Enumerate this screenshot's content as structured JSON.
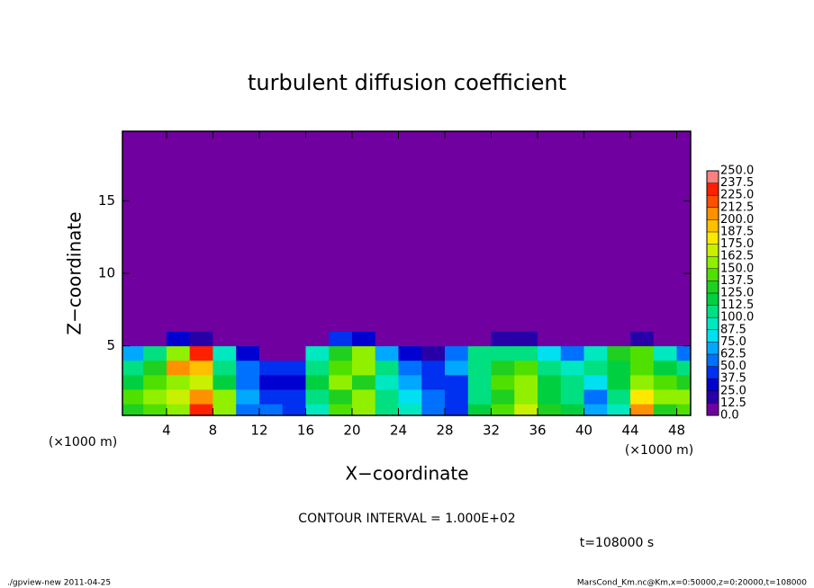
{
  "chart_data": {
    "type": "contour",
    "title": "turbulent diffusion coefficient",
    "xlabel": "X−coordinate",
    "ylabel": "Z−coordinate",
    "x_unit_label": "(×1000 m)",
    "y_unit_label": "(×1000 m)",
    "contour_interval": "CONTOUR INTERVAL = 1.000E+02",
    "time_label": "t=108000 s",
    "footer_left": "./gpview-new   2011-04-25",
    "footer_right": "MarsCond_Km.nc@Km,x=0:50000,z=0:20000,t=108000",
    "xlim": [
      0.2,
      49.2
    ],
    "ylim": [
      0.2,
      19.8
    ],
    "xticks": [
      4,
      8,
      12,
      16,
      20,
      24,
      28,
      32,
      36,
      40,
      44,
      48
    ],
    "yticks": [
      5,
      10,
      15
    ],
    "x_edges": [
      0.2,
      2,
      4,
      6,
      8,
      10,
      12,
      14,
      16,
      18,
      20,
      22,
      24,
      26,
      28,
      30,
      32,
      34,
      36,
      38,
      40,
      42,
      44,
      46,
      48,
      49.2
    ],
    "z_edges": [
      0.2,
      1,
      2,
      3,
      4,
      5,
      6,
      19.8
    ],
    "values": [
      [
        130,
        140,
        160,
        230,
        150,
        60,
        50,
        45,
        90,
        140,
        160,
        110,
        90,
        60,
        45,
        120,
        140,
        170,
        130,
        120,
        70,
        90,
        200,
        130,
        140
      ],
      [
        140,
        150,
        170,
        200,
        160,
        70,
        40,
        40,
        100,
        130,
        150,
        100,
        80,
        50,
        40,
        110,
        130,
        160,
        120,
        110,
        60,
        110,
        180,
        150,
        160
      ],
      [
        120,
        140,
        160,
        170,
        120,
        50,
        30,
        30,
        120,
        150,
        130,
        90,
        70,
        40,
        40,
        100,
        140,
        150,
        120,
        100,
        80,
        120,
        150,
        140,
        130
      ],
      [
        100,
        130,
        200,
        190,
        110,
        60,
        40,
        40,
        110,
        140,
        160,
        100,
        60,
        40,
        70,
        110,
        130,
        140,
        110,
        90,
        100,
        120,
        140,
        120,
        110
      ],
      [
        70,
        110,
        150,
        230,
        90,
        30,
        10,
        10,
        90,
        130,
        150,
        70,
        30,
        20,
        60,
        100,
        110,
        110,
        80,
        50,
        90,
        130,
        140,
        90,
        60
      ],
      [
        0,
        0,
        30,
        20,
        0,
        0,
        0,
        0,
        10,
        40,
        30,
        0,
        0,
        0,
        0,
        0,
        20,
        20,
        0,
        0,
        0,
        10,
        20,
        0,
        0
      ],
      [
        0,
        0,
        0,
        0,
        0,
        0,
        0,
        0,
        0,
        0,
        0,
        0,
        0,
        0,
        0,
        0,
        0,
        0,
        0,
        0,
        0,
        0,
        0,
        0,
        0
      ]
    ],
    "levels": [
      {
        "value": 0,
        "label": "0.0"
      },
      {
        "value": 12.5,
        "label": "12.5"
      },
      {
        "value": 25,
        "label": "25.0"
      },
      {
        "value": 37.5,
        "label": "37.5"
      },
      {
        "value": 50,
        "label": "50.0"
      },
      {
        "value": 62.5,
        "label": "62.5"
      },
      {
        "value": 75,
        "label": "75.0"
      },
      {
        "value": 87.5,
        "label": "87.5"
      },
      {
        "value": 100,
        "label": "100.0"
      },
      {
        "value": 112.5,
        "label": "112.5"
      },
      {
        "value": 125,
        "label": "125.0"
      },
      {
        "value": 137.5,
        "label": "137.5"
      },
      {
        "value": 150,
        "label": "150.0"
      },
      {
        "value": 162.5,
        "label": "162.5"
      },
      {
        "value": 175,
        "label": "175.0"
      },
      {
        "value": 187.5,
        "label": "187.5"
      },
      {
        "value": 200,
        "label": "200.0"
      },
      {
        "value": 212.5,
        "label": "212.5"
      },
      {
        "value": 225,
        "label": "225.0"
      },
      {
        "value": 237.5,
        "label": "237.5"
      },
      {
        "value": 250,
        "label": "250.0"
      }
    ],
    "colors": [
      "#7000a0",
      "#2800a8",
      "#0000d0",
      "#0030f0",
      "#0070ff",
      "#00a8ff",
      "#00e0f0",
      "#00e8c0",
      "#00e080",
      "#00d040",
      "#20d020",
      "#50e000",
      "#90f000",
      "#c8f000",
      "#ffe800",
      "#ffc000",
      "#ff9000",
      "#ff5000",
      "#ff2000",
      "#ff8080"
    ]
  }
}
